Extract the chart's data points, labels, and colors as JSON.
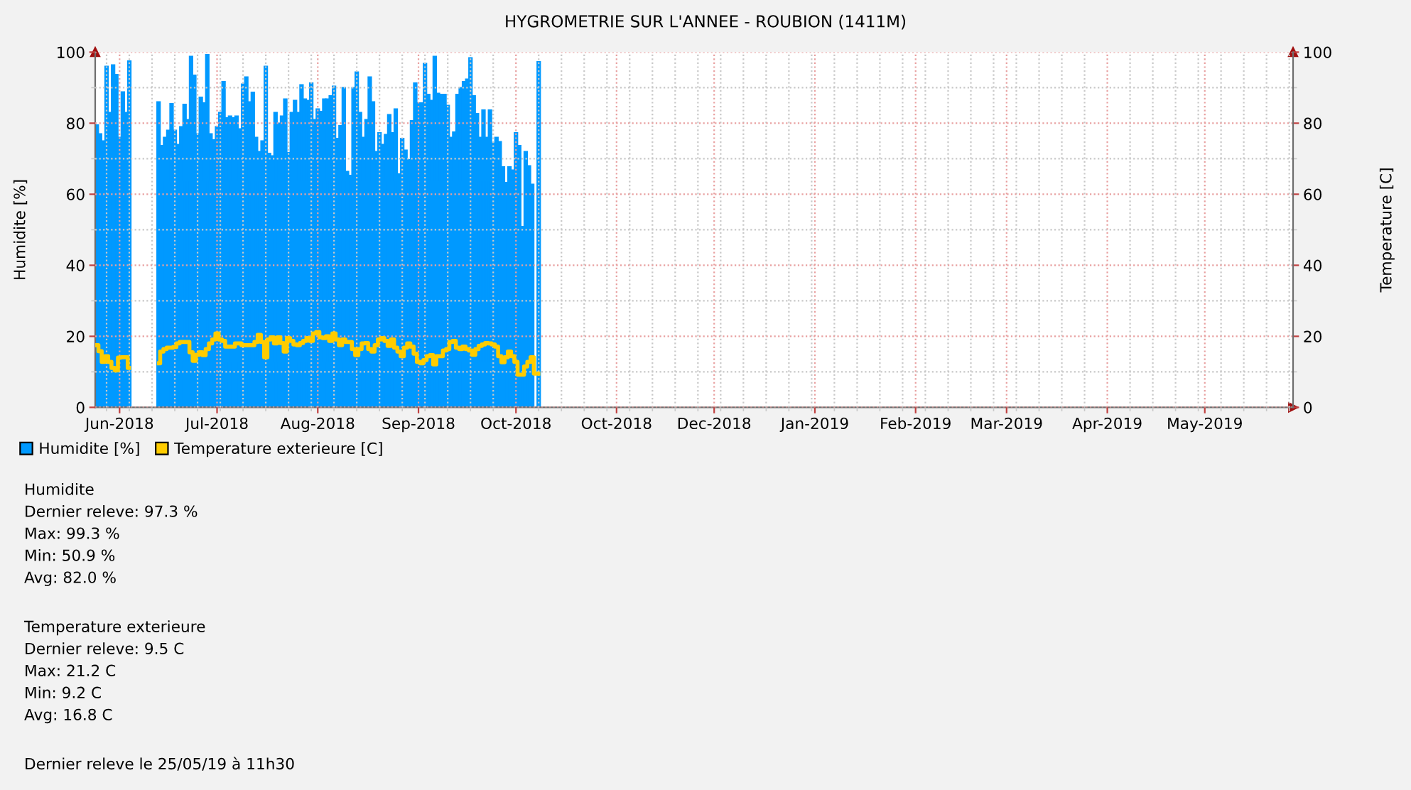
{
  "chart_data": {
    "type": "bar",
    "title": "HYGROMETRIE SUR L'ANNEE - ROUBION (1411M)",
    "ylabel": "Humidite [%]",
    "y2label": "Temperature [C]",
    "x": [
      "2018-05-25",
      "2018-05-26",
      "2018-05-27",
      "2018-05-28",
      "2018-05-29",
      "2018-05-30",
      "2018-05-31",
      "2018-06-01",
      "2018-06-02",
      "2018-06-03",
      "2018-06-04",
      "2018-06-05",
      "2018-06-06",
      "2018-06-07",
      "2018-06-08",
      "2018-06-09",
      "2018-06-10",
      "2018-06-11",
      "2018-06-12",
      "2018-06-13",
      "2018-06-14",
      "2018-06-15",
      "2018-06-16",
      "2018-06-17",
      "2018-06-18",
      "2018-06-19",
      "2018-06-20",
      "2018-06-21",
      "2018-06-22",
      "2018-06-23",
      "2018-06-24",
      "2018-06-25",
      "2018-06-26",
      "2018-06-27",
      "2018-06-28",
      "2018-06-29",
      "2018-06-30",
      "2018-07-01",
      "2018-07-02",
      "2018-07-03",
      "2018-07-04",
      "2018-07-05",
      "2018-07-06",
      "2018-07-07",
      "2018-07-08",
      "2018-07-09",
      "2018-07-10",
      "2018-07-11",
      "2018-07-12",
      "2018-07-13",
      "2018-07-14",
      "2018-07-15",
      "2018-07-16",
      "2018-07-17",
      "2018-07-18",
      "2018-07-19",
      "2018-07-20",
      "2018-07-21",
      "2018-07-22",
      "2018-07-23",
      "2018-07-24",
      "2018-07-25",
      "2018-07-26",
      "2018-07-27",
      "2018-07-28",
      "2018-07-29",
      "2018-07-30",
      "2018-07-31",
      "2018-08-01",
      "2018-08-02",
      "2018-08-03",
      "2018-08-04",
      "2018-08-05",
      "2018-08-06",
      "2018-08-07",
      "2018-08-08",
      "2018-08-09",
      "2018-08-10",
      "2018-08-11",
      "2018-08-12",
      "2018-08-13",
      "2018-08-14",
      "2018-08-15",
      "2018-08-16",
      "2018-08-17",
      "2018-08-18",
      "2018-08-19",
      "2018-08-20",
      "2018-08-21",
      "2018-08-22",
      "2018-08-23",
      "2018-08-24",
      "2018-08-25",
      "2018-08-26",
      "2018-08-27",
      "2018-08-28",
      "2018-08-29",
      "2018-08-30",
      "2018-08-31",
      "2018-09-01",
      "2018-09-02",
      "2018-09-03",
      "2018-09-04",
      "2018-09-05",
      "2018-09-06",
      "2018-09-07",
      "2018-09-08",
      "2018-09-09",
      "2018-09-10",
      "2018-09-11",
      "2018-09-12",
      "2018-09-13",
      "2018-09-14",
      "2018-09-15",
      "2018-09-16",
      "2018-09-17",
      "2018-09-18",
      "2018-09-19",
      "2018-09-20",
      "2018-09-21",
      "2018-09-22",
      "2018-09-23",
      "2018-09-24",
      "2018-09-25",
      "2018-09-26",
      "2018-09-27",
      "2018-09-28",
      "2018-09-29",
      "2018-09-30",
      "2018-10-01",
      "2018-10-02",
      "2018-10-03",
      "2018-10-04",
      "2018-10-05",
      "2018-10-06",
      "2018-10-07",
      "2018-10-08"
    ],
    "series": [
      {
        "name": "Humidite [%]",
        "color": "#0099ff",
        "values": [
          79.5,
          77,
          75,
          96,
          83,
          96.4,
          93.7,
          76,
          88.8,
          83,
          97.5,
          null,
          null,
          null,
          null,
          null,
          null,
          null,
          null,
          86,
          73.7,
          76,
          78,
          85.5,
          78,
          74,
          79,
          85.3,
          81,
          98.8,
          93.5,
          77,
          87.3,
          85.7,
          99.3,
          77,
          75.3,
          79,
          83,
          91.7,
          81.5,
          82,
          81.5,
          82,
          78.4,
          91,
          93,
          86,
          88.7,
          76,
          72,
          75,
          96,
          71.5,
          70.8,
          83,
          80,
          82,
          86.8,
          71.7,
          83,
          86.4,
          83,
          90.8,
          86.8,
          86.4,
          91.3,
          81,
          84,
          83.3,
          86.8,
          86.8,
          87.7,
          90.4,
          75.7,
          79.3,
          90,
          66.4,
          65.3,
          90,
          94.4,
          83,
          76,
          81,
          93,
          86,
          72,
          77.3,
          74,
          76.8,
          82.4,
          77.3,
          84,
          65.7,
          75.7,
          72.4,
          69.7,
          80.7,
          91.3,
          85.7,
          85.7,
          96.8,
          88.1,
          86.4,
          98.8,
          88.4,
          88.1,
          88.1,
          85,
          76,
          77.5,
          88.1,
          90,
          91.7,
          92.4,
          98.4,
          87.7,
          82.7,
          76,
          83.7,
          76,
          83.7,
          74.4,
          76,
          74.8,
          67.7,
          63.3,
          67.7,
          66.8,
          77.3,
          73.7,
          50.9,
          72,
          68,
          62.8,
          null,
          97.3
        ]
      },
      {
        "name": "Temperature exterieure [C]",
        "type": "step",
        "color": "#ffcc00",
        "values": [
          17.5,
          15.8,
          12.8,
          14.4,
          12.8,
          11.1,
          10.4,
          14,
          14.1,
          14.1,
          11.1,
          null,
          null,
          null,
          null,
          null,
          null,
          null,
          null,
          12.4,
          15.7,
          16.4,
          16.8,
          16.8,
          17,
          18,
          18.4,
          18.4,
          18.4,
          15.5,
          13.1,
          14.8,
          15.5,
          14.7,
          16.4,
          18,
          19.1,
          20.8,
          19.1,
          18.7,
          17.1,
          17.1,
          17.1,
          18,
          18,
          17.5,
          17.5,
          17.5,
          17.5,
          18.4,
          20.4,
          18.4,
          14.1,
          19.1,
          19.7,
          18,
          19.7,
          18.1,
          15.7,
          19.5,
          18.7,
          17.7,
          17.5,
          18.1,
          18.7,
          19.5,
          18.7,
          20.8,
          21.2,
          19.7,
          19.5,
          20,
          18.7,
          20.8,
          19.1,
          17.5,
          19.1,
          18.4,
          18.4,
          16.4,
          14.7,
          16.4,
          18,
          18.1,
          16.4,
          15.7,
          17.5,
          19.1,
          19.5,
          18.7,
          17.3,
          19.1,
          16.8,
          15.7,
          14.4,
          16.8,
          18,
          17.1,
          15.1,
          12.8,
          12.4,
          13.3,
          14.4,
          14.7,
          12.1,
          14.4,
          14.4,
          16,
          16.4,
          18.4,
          18.7,
          16.8,
          16.4,
          17.1,
          16.4,
          16,
          14.8,
          16.4,
          17.3,
          17.7,
          18.1,
          18,
          17.7,
          17.1,
          14.4,
          12.7,
          14.1,
          15.7,
          14.4,
          12.8,
          9.2,
          9.2,
          11.5,
          12.8,
          14.1,
          9.5,
          9.5
        ]
      }
    ],
    "xlim": [
      "2018-05-24T12:00",
      "2019-05-28T04:00"
    ],
    "xticks": [
      {
        "value": "2018-06-01",
        "label": "Jun-2018"
      },
      {
        "value": "2018-07-01",
        "label": "Jul-2018"
      },
      {
        "value": "2018-08-01",
        "label": "Aug-2018"
      },
      {
        "value": "2018-09-01",
        "label": "Sep-2018"
      },
      {
        "value": "2018-10-01",
        "label": "Oct-2018"
      },
      {
        "value": "2018-10-31T23:00",
        "label": "Oct-2018"
      },
      {
        "value": "2018-12-01",
        "label": "Dec-2018"
      },
      {
        "value": "2019-01-01",
        "label": "Jan-2019"
      },
      {
        "value": "2019-02-01",
        "label": "Feb-2019"
      },
      {
        "value": "2019-03-01",
        "label": "Mar-2019"
      },
      {
        "value": "2019-04-01",
        "label": "Apr-2019"
      },
      {
        "value": "2019-05-01",
        "label": "May-2019"
      }
    ],
    "ylim": [
      0,
      100
    ],
    "yticks": [
      0,
      20,
      40,
      60,
      80,
      100
    ],
    "y2lim": [
      0,
      100
    ],
    "y2ticks": [
      0,
      20,
      40,
      60,
      80,
      100
    ],
    "grid": true,
    "legend": "bottom left",
    "annotations": [
      "Humidite\nDernier releve: 97.3 %\nMax: 99.3 %\nMin: 50.9 %\nAvg: 82.0 %",
      "Temperature exterieure\nDernier releve: 9.5 C\nMax: 21.2 C\nMin: 9.2 C\nAvg: 16.8 C",
      "Dernier releve le 25/05/19 à 11h30"
    ]
  }
}
